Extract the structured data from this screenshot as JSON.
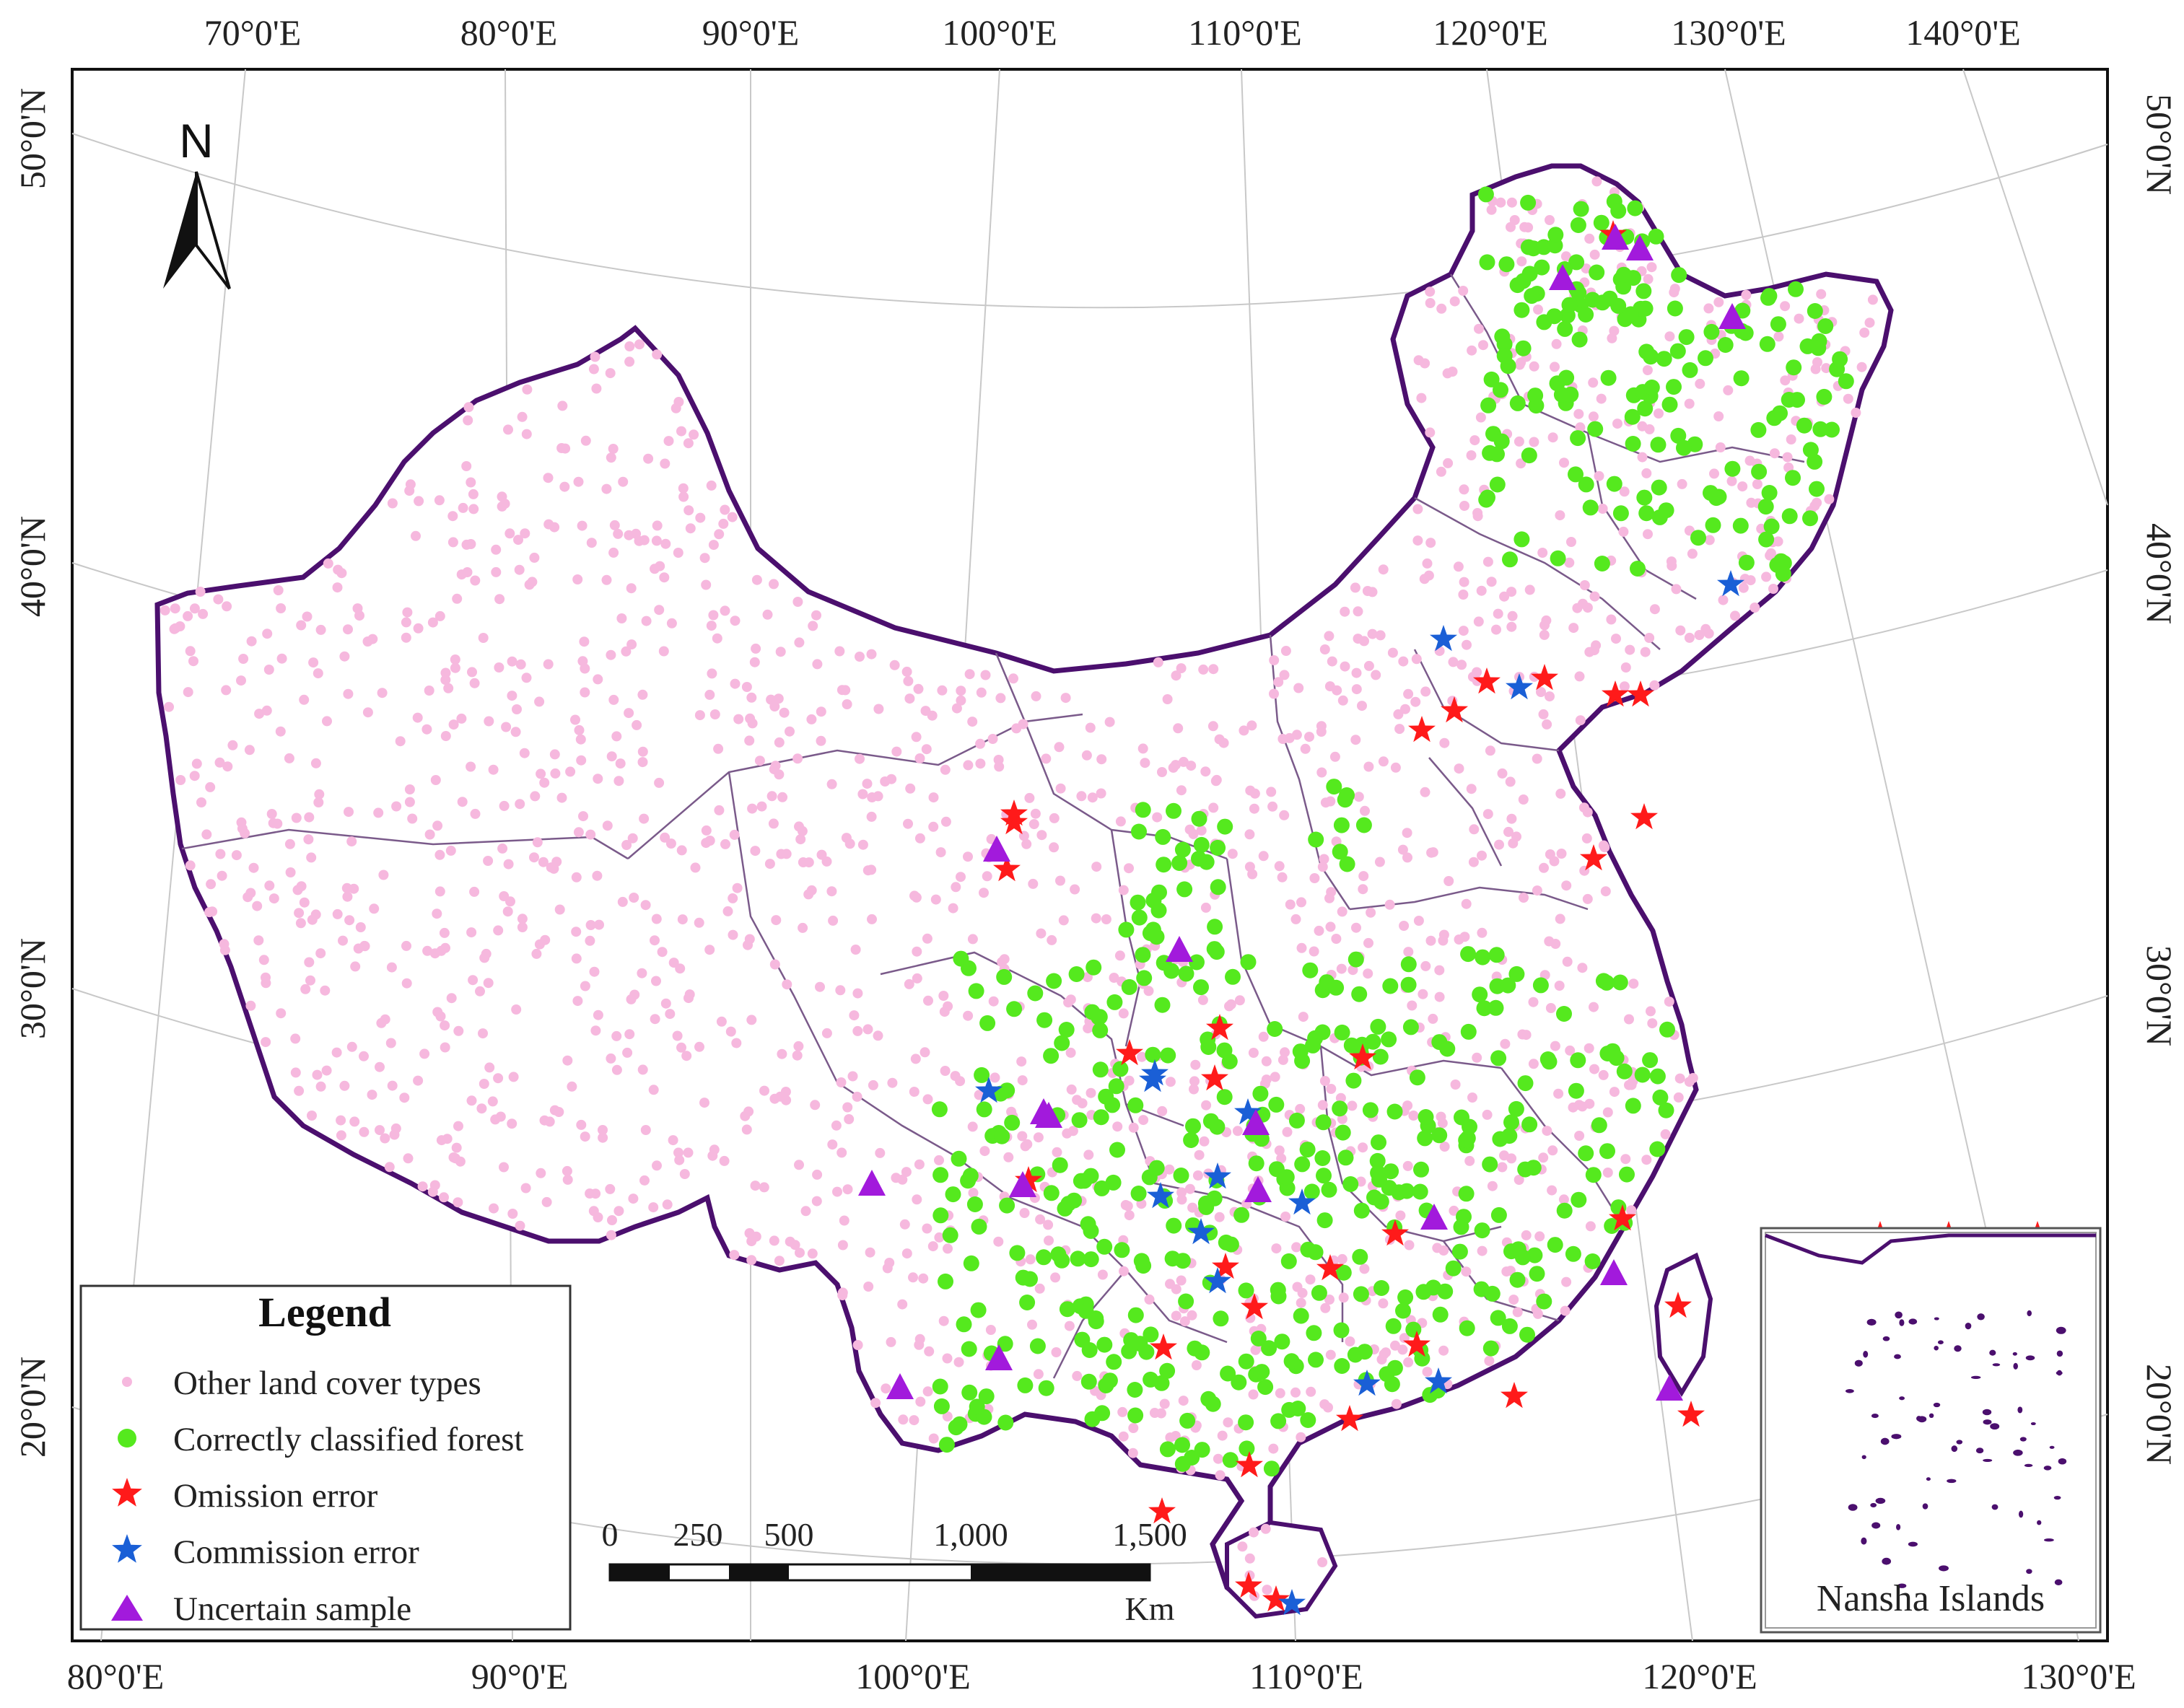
{
  "map": {
    "top_lon_labels": [
      "70°0'E",
      "80°0'E",
      "90°0'E",
      "100°0'E",
      "110°0'E",
      "120°0'E",
      "130°0'E",
      "140°0'E"
    ],
    "bottom_lon_labels": [
      "80°0'E",
      "90°0'E",
      "100°0'E",
      "110°0'E",
      "120°0'E",
      "130°0'E"
    ],
    "left_lat_labels": [
      "50°0'N",
      "40°0'N",
      "30°0'N",
      "20°0'N"
    ],
    "right_lat_labels": [
      "50°0'N",
      "40°0'N",
      "30°0'N",
      "20°0'N"
    ],
    "north_label": "N",
    "inset_label": "Nansha Islands",
    "colors": {
      "boundary": "#4b0f6e",
      "province_line": "#7a5a8a",
      "other_land": "#f6b8de",
      "forest": "#55e91e",
      "omission": "#ff1a1a",
      "commission": "#1a5fd6",
      "uncertain": "#a21adc",
      "graticule": "#c8c8c8"
    }
  },
  "legend": {
    "title": "Legend",
    "items": [
      {
        "label": "Other land cover types",
        "symbol": "small-pink-dot"
      },
      {
        "label": "Correctly classified forest",
        "symbol": "green-dot"
      },
      {
        "label": "Omission error",
        "symbol": "red-star"
      },
      {
        "label": "Commission error",
        "symbol": "blue-star"
      },
      {
        "label": "Uncertain sample",
        "symbol": "purple-triangle"
      }
    ]
  },
  "scale_bar": {
    "labels": [
      "0",
      "250",
      "500",
      "1,000",
      "1,500"
    ],
    "unit": "Km"
  }
}
